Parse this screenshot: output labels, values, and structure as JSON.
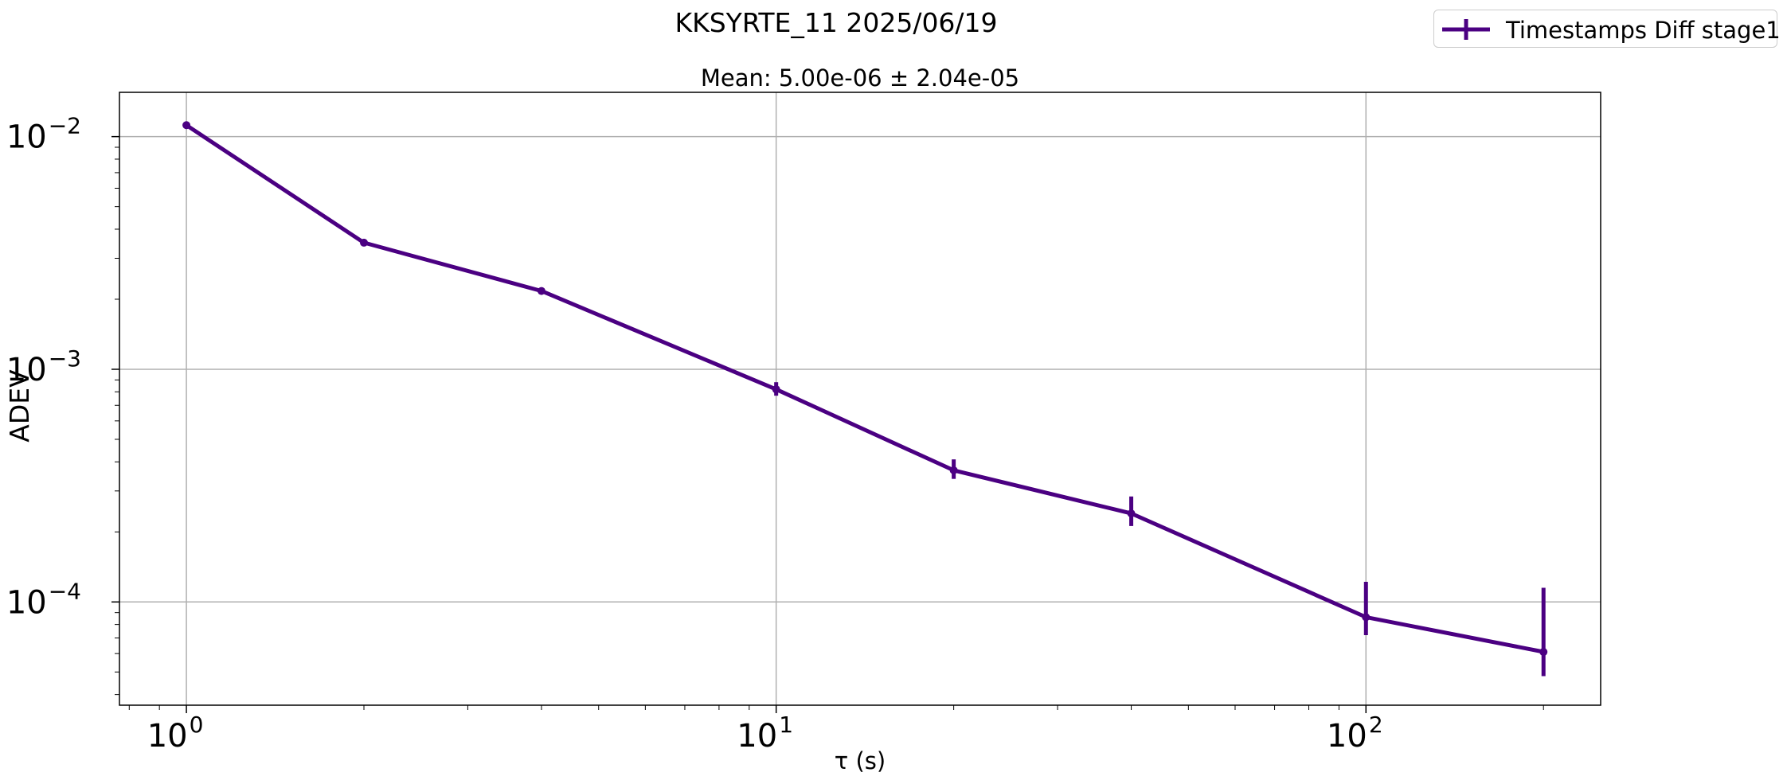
{
  "figure_title": "KKSYRTE_11 2025/06/19",
  "colors": {
    "series": "#4b0082",
    "grid": "#b0b0b0",
    "axes": "#000000"
  },
  "chart_data": {
    "type": "line",
    "title": "Mean: 5.00e-06 ± 2.04e-05",
    "xlabel": "τ (s)",
    "ylabel": "ADEV",
    "xscale": "log",
    "yscale": "log",
    "xlim": [
      0.77,
      250
    ],
    "ylim": [
      3.6e-05,
      0.0155
    ],
    "grid": true,
    "legend_position": "top-right, outside plot",
    "x_ticks": [
      {
        "value": 1,
        "base": "10",
        "exp": "0"
      },
      {
        "value": 10,
        "base": "10",
        "exp": "1"
      },
      {
        "value": 100,
        "base": "10",
        "exp": "2"
      }
    ],
    "y_ticks": [
      {
        "value": 0.01,
        "base": "10",
        "exp": "−2"
      },
      {
        "value": 0.001,
        "base": "10",
        "exp": "−3"
      },
      {
        "value": 0.0001,
        "base": "10",
        "exp": "−4"
      }
    ],
    "series": [
      {
        "name": "Timestamps Diff stage1",
        "x": [
          1,
          2,
          4,
          10,
          20,
          40,
          100,
          200
        ],
        "y": [
          0.0112,
          0.0035,
          0.00217,
          0.00082,
          0.000368,
          0.00024,
          8.6e-05,
          6.1e-05
        ],
        "yerr_low": [
          0.0111,
          0.00348,
          0.00212,
          0.00077,
          0.000338,
          0.000212,
          7.2e-05,
          4.8e-05
        ],
        "yerr_high": [
          0.0113,
          0.00352,
          0.00222,
          0.00088,
          0.00041,
          0.000284,
          0.000122,
          0.000115
        ]
      }
    ]
  }
}
